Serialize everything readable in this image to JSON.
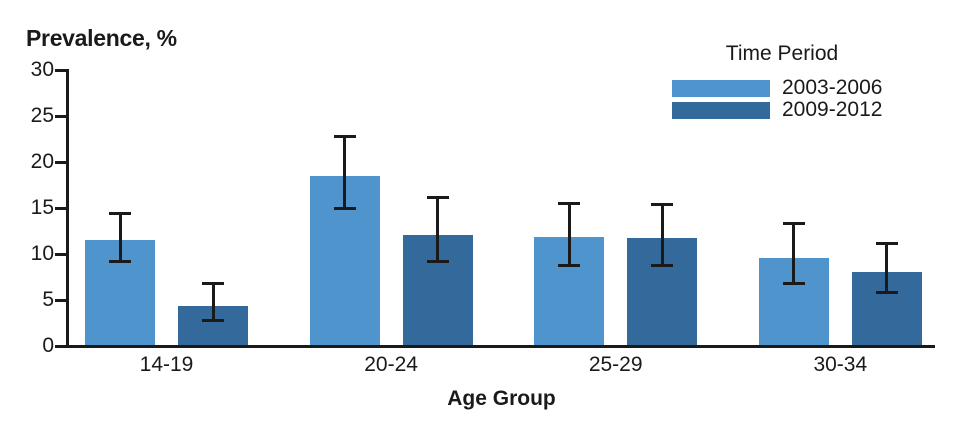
{
  "chart_data": {
    "type": "bar",
    "title": "",
    "ylabel": "Prevalence, %",
    "xlabel": "Age Group",
    "ylim": [
      0,
      30
    ],
    "ytick_step": 5,
    "yticks": [
      0,
      5,
      10,
      15,
      20,
      25,
      30
    ],
    "grid": false,
    "axis_color": "#1a1a1a",
    "error_bar_color": "#1a1a1a",
    "categories": [
      "14-19",
      "20-24",
      "25-29",
      "30-34"
    ],
    "legend": {
      "title": "Time Period",
      "position": "top-right"
    },
    "series": [
      {
        "name": "2003-2006",
        "color": "#5094ce",
        "values": [
          11.5,
          18.5,
          11.8,
          9.6
        ],
        "ci_low": [
          9.2,
          15.0,
          8.8,
          6.8
        ],
        "ci_high": [
          14.4,
          22.8,
          15.5,
          13.3
        ]
      },
      {
        "name": "2009-2012",
        "color": "#336a9b",
        "values": [
          4.3,
          12.1,
          11.7,
          8.0
        ],
        "ci_low": [
          2.8,
          9.2,
          8.7,
          5.8
        ],
        "ci_high": [
          6.8,
          16.1,
          15.4,
          11.1
        ]
      }
    ]
  }
}
